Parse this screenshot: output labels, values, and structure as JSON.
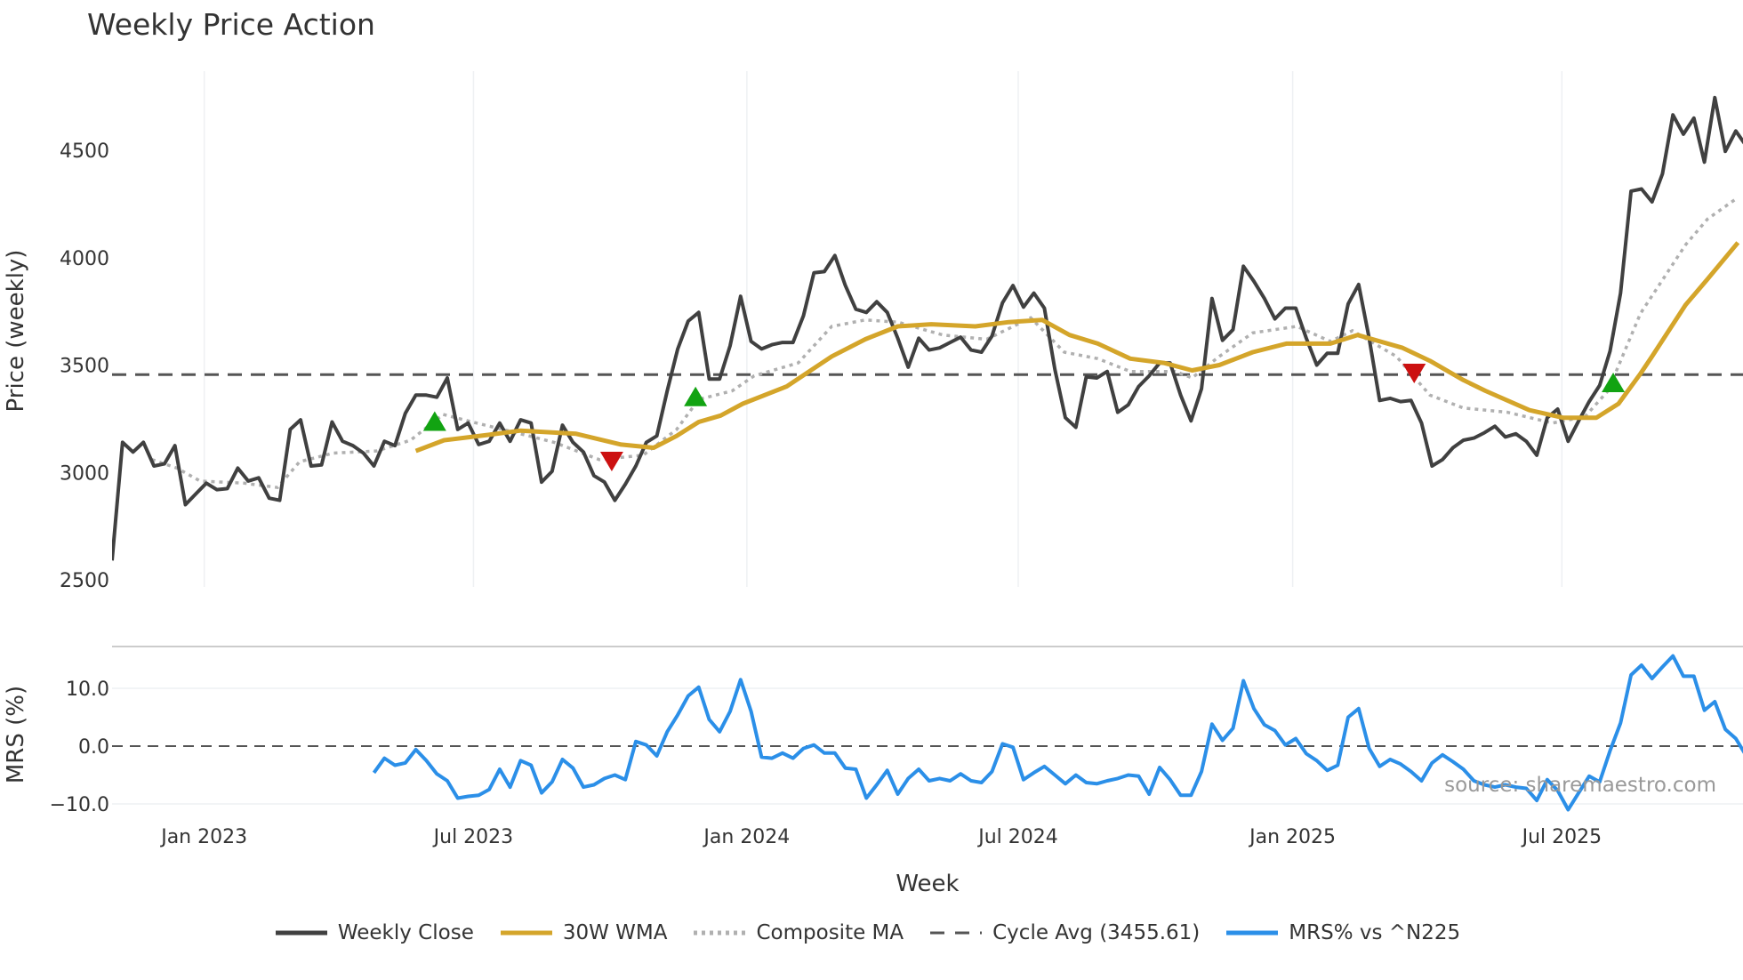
{
  "title": "Weekly Price Action",
  "source": "source: sharemaestro.com",
  "legend": [
    {
      "label": "Weekly Close",
      "color": "#404040",
      "style": "solid"
    },
    {
      "label": "30W WMA",
      "color": "#d4a52a",
      "style": "solid"
    },
    {
      "label": "Composite MA",
      "color": "#b0b0b0",
      "style": "dotted"
    },
    {
      "label": "Cycle Avg (3455.61)",
      "color": "#555555",
      "style": "dashed"
    },
    {
      "label": "MRS% vs ^N225",
      "color": "#2b8fe8",
      "style": "solid"
    }
  ],
  "chart_data": [
    {
      "type": "line",
      "panel": "price",
      "ylabel": "Price (weekly)",
      "xlabel": "Week",
      "ylim": [
        2500,
        4800
      ],
      "yticks": [
        2500,
        3000,
        3500,
        4000,
        4500
      ],
      "xticks": [
        {
          "week": 8.8,
          "label": "Jan 2023"
        },
        {
          "week": 34.5,
          "label": "Jul 2023"
        },
        {
          "week": 60.6,
          "label": "Jan 2024"
        },
        {
          "week": 86.5,
          "label": "Jul 2024"
        },
        {
          "week": 112.7,
          "label": "Jan 2025"
        },
        {
          "week": 138.4,
          "label": "Jul 2025"
        }
      ],
      "cycle_avg": 3455.61,
      "weekly_close": [
        2590,
        3140,
        3095,
        3140,
        3030,
        3040,
        3125,
        2850,
        2900,
        2950,
        2920,
        2925,
        3020,
        2960,
        2975,
        2880,
        2870,
        3200,
        3245,
        3030,
        3035,
        3235,
        3145,
        3125,
        3090,
        3030,
        3145,
        3125,
        3275,
        3360,
        3360,
        3350,
        3440,
        3200,
        3230,
        3130,
        3145,
        3230,
        3145,
        3245,
        3230,
        2955,
        3005,
        3220,
        3140,
        3095,
        2985,
        2955,
        2870,
        2945,
        3030,
        3140,
        3170,
        3380,
        3575,
        3705,
        3745,
        3435,
        3435,
        3590,
        3820,
        3610,
        3575,
        3595,
        3605,
        3605,
        3730,
        3930,
        3935,
        4010,
        3870,
        3760,
        3745,
        3795,
        3745,
        3625,
        3490,
        3625,
        3570,
        3580,
        3605,
        3630,
        3570,
        3560,
        3635,
        3790,
        3870,
        3770,
        3835,
        3765,
        3480,
        3255,
        3210,
        3445,
        3440,
        3470,
        3280,
        3315,
        3400,
        3450,
        3510,
        3510,
        3360,
        3240,
        3390,
        3810,
        3615,
        3665,
        3960,
        3890,
        3810,
        3715,
        3765,
        3765,
        3625,
        3500,
        3555,
        3555,
        3785,
        3875,
        3625,
        3335,
        3345,
        3330,
        3335,
        3230,
        3030,
        3060,
        3115,
        3150,
        3160,
        3185,
        3215,
        3165,
        3180,
        3145,
        3080,
        3255,
        3295,
        3145,
        3240,
        3330,
        3405,
        3565,
        3835,
        4310,
        4320,
        4260,
        4390,
        4665,
        4575,
        4650,
        4445,
        4745,
        4495,
        4590,
        4520
      ],
      "wma_30w": [
        [
          29,
          3100
        ],
        [
          31.7,
          3150
        ],
        [
          35.9,
          3175
        ],
        [
          39,
          3195
        ],
        [
          44.3,
          3180
        ],
        [
          48.6,
          3130
        ],
        [
          51.7,
          3115
        ],
        [
          53.9,
          3170
        ],
        [
          56,
          3235
        ],
        [
          58.1,
          3265
        ],
        [
          60.2,
          3320
        ],
        [
          64.4,
          3400
        ],
        [
          68.7,
          3540
        ],
        [
          71.9,
          3620
        ],
        [
          75,
          3680
        ],
        [
          78.2,
          3690
        ],
        [
          82.4,
          3680
        ],
        [
          85.6,
          3700
        ],
        [
          88.8,
          3710
        ],
        [
          91.4,
          3640
        ],
        [
          94.1,
          3600
        ],
        [
          97.2,
          3530
        ],
        [
          100.4,
          3510
        ],
        [
          103.1,
          3475
        ],
        [
          105.7,
          3500
        ],
        [
          108.9,
          3560
        ],
        [
          112.1,
          3600
        ],
        [
          116.3,
          3600
        ],
        [
          118.9,
          3640
        ],
        [
          123.2,
          3580
        ],
        [
          125.8,
          3520
        ],
        [
          129,
          3430
        ],
        [
          131.1,
          3380
        ],
        [
          135.3,
          3290
        ],
        [
          138.5,
          3255
        ],
        [
          141.7,
          3255
        ],
        [
          143.8,
          3320
        ],
        [
          145.9,
          3460
        ],
        [
          147,
          3540
        ],
        [
          150.2,
          3780
        ],
        [
          152.3,
          3900
        ],
        [
          155.2,
          4070
        ]
      ],
      "composite_ma": [
        [
          3.8,
          3060
        ],
        [
          6.2,
          3020
        ],
        [
          8.4,
          2960
        ],
        [
          12.6,
          2950
        ],
        [
          15.8,
          2930
        ],
        [
          17.9,
          3050
        ],
        [
          21.1,
          3090
        ],
        [
          25.3,
          3100
        ],
        [
          28.5,
          3150
        ],
        [
          31.6,
          3270
        ],
        [
          34.8,
          3230
        ],
        [
          39,
          3180
        ],
        [
          42.2,
          3140
        ],
        [
          46.5,
          3060
        ],
        [
          50.7,
          3080
        ],
        [
          53.9,
          3200
        ],
        [
          56,
          3340
        ],
        [
          59.2,
          3380
        ],
        [
          61.3,
          3450
        ],
        [
          65.5,
          3510
        ],
        [
          68.7,
          3680
        ],
        [
          71.9,
          3710
        ],
        [
          75,
          3700
        ],
        [
          79.3,
          3640
        ],
        [
          83.5,
          3620
        ],
        [
          87.7,
          3720
        ],
        [
          90.9,
          3560
        ],
        [
          94.1,
          3530
        ],
        [
          97.2,
          3470
        ],
        [
          101.5,
          3470
        ],
        [
          103.1,
          3440
        ],
        [
          105.7,
          3540
        ],
        [
          108.9,
          3650
        ],
        [
          113.1,
          3680
        ],
        [
          116.3,
          3610
        ],
        [
          118.4,
          3660
        ],
        [
          122.6,
          3540
        ],
        [
          125.8,
          3360
        ],
        [
          129,
          3300
        ],
        [
          133.2,
          3280
        ],
        [
          137.5,
          3230
        ],
        [
          140.6,
          3260
        ],
        [
          142.8,
          3380
        ],
        [
          145.9,
          3740
        ],
        [
          150.2,
          4060
        ],
        [
          152.3,
          4180
        ],
        [
          155.2,
          4280
        ]
      ],
      "signals": [
        {
          "type": "buy",
          "week": 30.8,
          "price": 3235
        },
        {
          "type": "sell",
          "week": 47.7,
          "price": 3055
        },
        {
          "type": "buy",
          "week": 55.7,
          "price": 3350
        },
        {
          "type": "sell",
          "week": 124.3,
          "price": 3465
        },
        {
          "type": "buy",
          "week": 143.3,
          "price": 3415
        }
      ]
    },
    {
      "type": "line",
      "panel": "mrs",
      "ylabel": "MRS (%)",
      "ylim": [
        -12,
        17
      ],
      "yticks": [
        {
          "value": -10,
          "label": "−10.0"
        },
        {
          "value": 0,
          "label": "0.0"
        },
        {
          "value": 10,
          "label": "10.0"
        }
      ],
      "mrs_start_week": 25,
      "mrs": [
        -4.6,
        -2.1,
        -3.3,
        -2.9,
        -0.6,
        -2.5,
        -4.8,
        -6,
        -9,
        -8.7,
        -8.5,
        -7.5,
        -4,
        -7.1,
        -2.5,
        -3.3,
        -8.1,
        -6.2,
        -2.3,
        -3.8,
        -7.1,
        -6.7,
        -5.6,
        -5,
        -5.8,
        0.8,
        0.2,
        -1.7,
        2.5,
        5.4,
        8.7,
        10.2,
        4.6,
        2.5,
        6,
        11.5,
        6,
        -1.9,
        -2.1,
        -1.2,
        -2.1,
        -0.4,
        0.2,
        -1.2,
        -1.2,
        -3.8,
        -4,
        -9,
        -6.7,
        -4.2,
        -8.3,
        -5.6,
        -4,
        -6,
        -5.6,
        -6,
        -4.8,
        -6,
        -6.3,
        -4.4,
        0.4,
        -0.2,
        -5.8,
        -4.6,
        -3.5,
        -5,
        -6.5,
        -5,
        -6.3,
        -6.5,
        -6,
        -5.6,
        -5,
        -5.2,
        -8.3,
        -3.7,
        -5.8,
        -8.5,
        -8.5,
        -4.4,
        3.8,
        1,
        3.1,
        11.3,
        6.5,
        3.7,
        2.7,
        0.2,
        1.3,
        -1.3,
        -2.5,
        -4.2,
        -3.3,
        5,
        6.5,
        -0.4,
        -3.5,
        -2.3,
        -3.1,
        -4.4,
        -6,
        -2.9,
        -1.5,
        -2.7,
        -4,
        -6,
        -6.7,
        -7.1,
        -6.7,
        -7.1,
        -7.3,
        -9.4,
        -5.8,
        -7.7,
        -11,
        -8.1,
        -5.2,
        -6.2,
        -0.8,
        4,
        12.3,
        14,
        11.7,
        13.7,
        15.6,
        12.1,
        12.1,
        6.2,
        7.7,
        2.9,
        1.3,
        -1.7
      ]
    }
  ]
}
